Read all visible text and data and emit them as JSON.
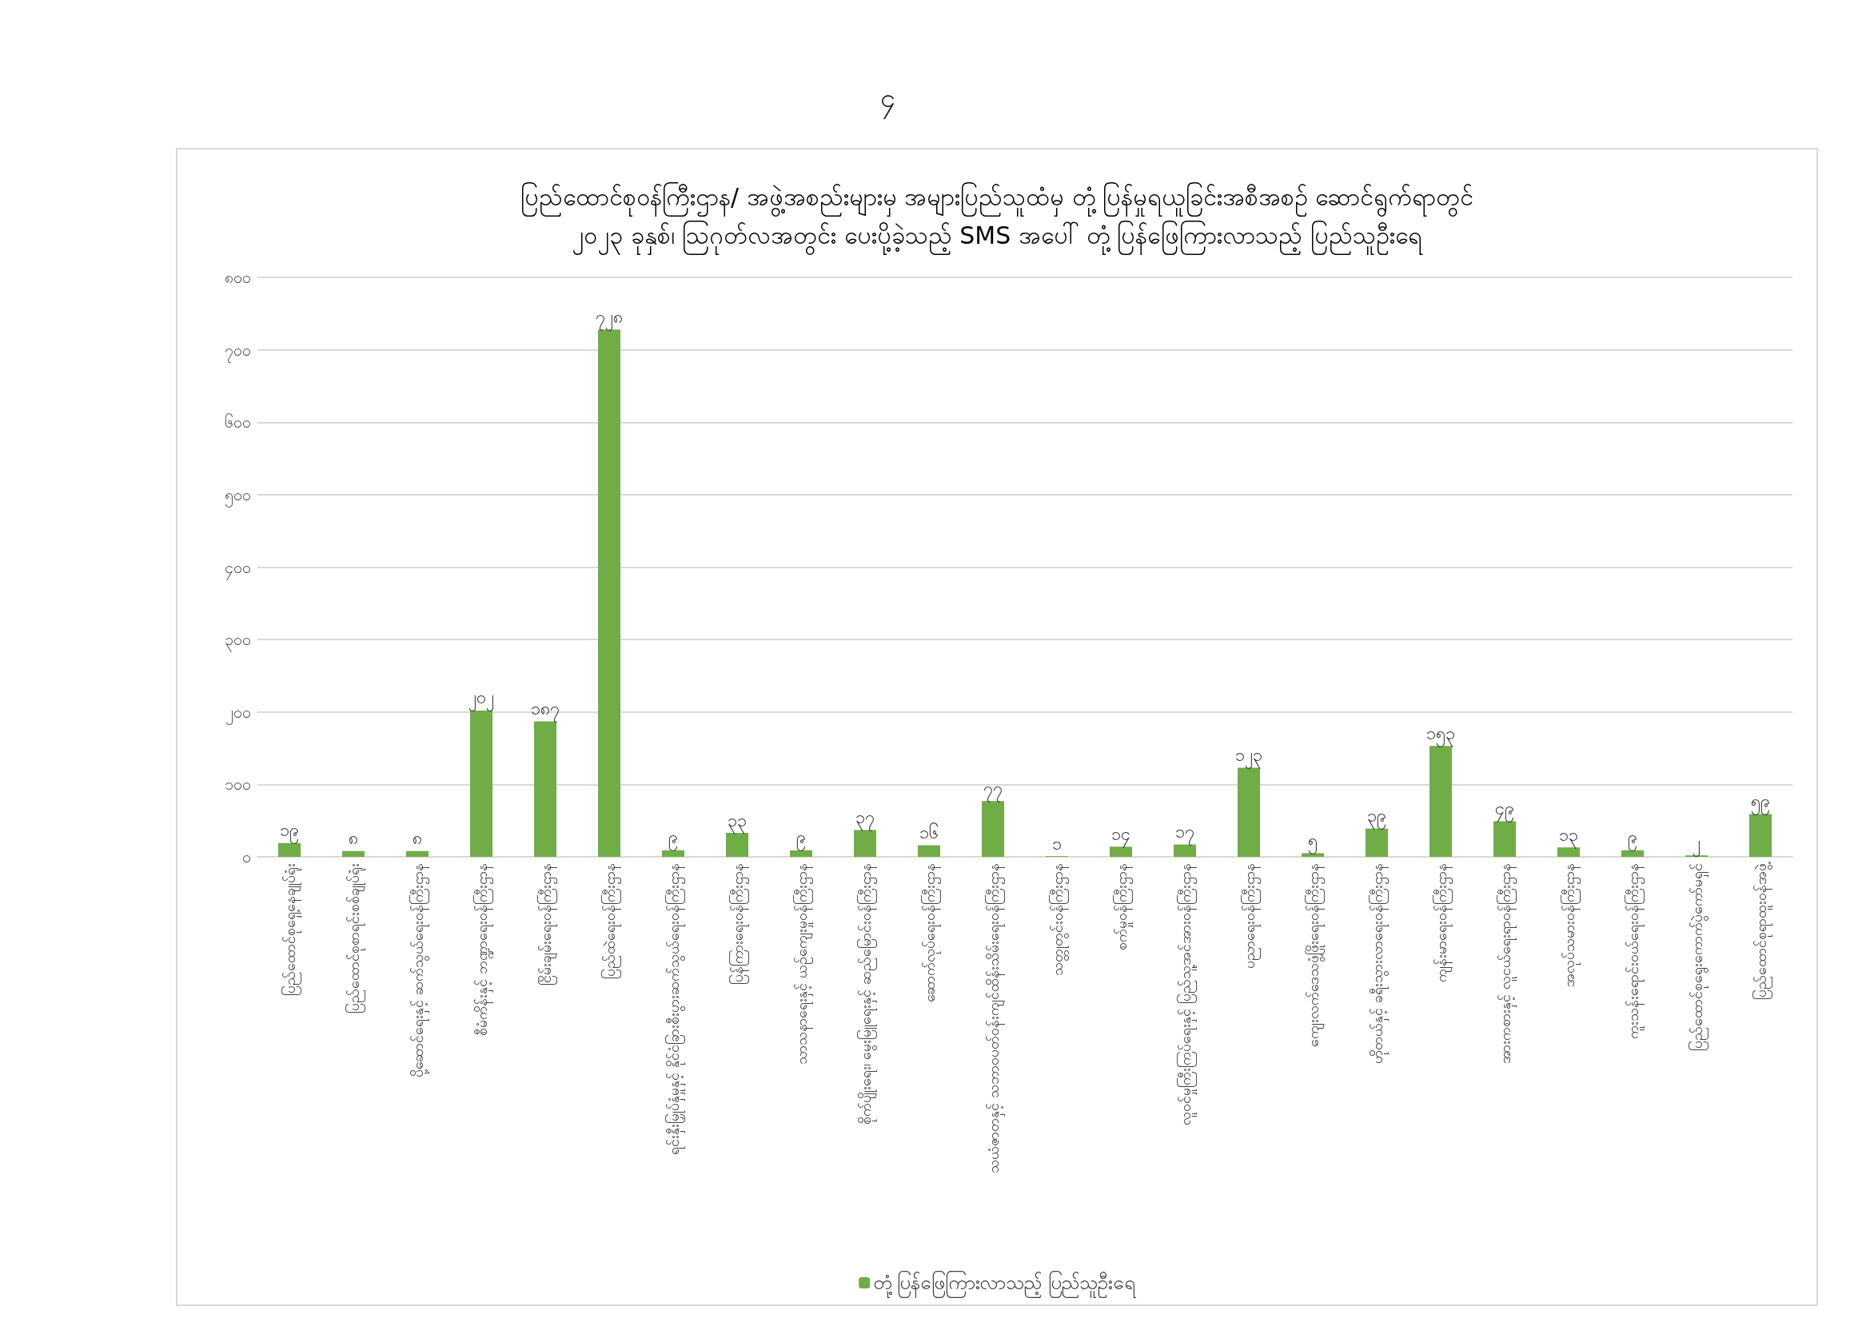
{
  "chart_data": {
    "type": "bar",
    "title": "ပြည်ထောင်စုဝန်ကြီးဌာန/ အဖွဲ့အစည်းများမှ အများပြည်သူထံမှ တုံ့ပြန်မှုရယူခြင်းအစီအစဉ် ဆောင်ရွက်ရာတွင်\n၂၀၂၃ ခုနှစ်၊ ဩဂုတ်လအတွင်း ပေးပို့ခဲ့သည့် SMS အပေါ် တုံ့ပြန်ဖြေကြားလာသည့် ပြည်သူဦးရေ",
    "annotations": [
      "၄"
    ],
    "categories": [
      "ပြည်ထောင်စုရှေ့နေချုပ်ရုံး",
      "ပြည်ထောင်စုစာရင်းစစ်ချုပ်ရုံး",
      "ပို့ဆောင်ရေးနှင့် ဆက်သွယ်ရေးဝန်ကြီးဌာန",
      "စီမံကိန်းနှင့် ဘဏ္ဍာရေးဝန်ကြီးဌာန",
      "ငြိမ်းချမ်းရေးဝန်ကြီးဌာန",
      "ပြည်ထဲရေးဝန်ကြီးဌာန",
      "ရင်းနှီးမြှုပ်နှံမှုနှင့် နိုင်ငံခြားစီးပွားဆက်သွယ်ရေးဝန်ကြီးဌာန",
      "ပြန်ကြားရေးဝန်ကြီးဌာန",
      "သာသနာရေးနှင့် ယဉ်ကျေးမှုဝန်ကြီးဌာန",
      "စိုက်ပျိုးရေး၊ မွေးမြူရေးနှင့် ဆည်မြောင်းဝန်ကြီးဌာန",
      "ဆောက်လုပ်ရေးဝန်ကြီးဌာန",
      "သယံဇာတနှင့် သဘာဝပတ်ဝန်းကျင်ထိန်းသိမ်းရေးဝန်ကြီးဌာန",
      "သတ္တုတွင်းဝန်ကြီးဌာန",
      "စက်မှုဝန်ကြီးဌာန",
      "လူဝင်မှုကြီးကြပ်ရေးနှင့် ပြည်သူ့အင်အားဝန်ကြီးဌာန",
      "ပညာရေးဝန်ကြီးဌာန",
      "ကျေးလက်ဒေသဖွံ့ဖြိုးရေးဝန်ကြီးဌာန",
      "ဟိုတယ်နှင့် ခရီးသွားလာရေးဝန်ကြီးဌာန",
      "ကျန်းမာရေးဝန်ကြီးဌာန",
      "အားကစားနှင့် လူငယ်ရေးရာဝန်ကြီးဌာန",
      "အလုပ်သမားဝန်ကြီးဌာန",
      "ကူးသန်းရောင်းဝယ်ရေးဝန်ကြီးဌာန",
      "ပြည်ထောင်စုရွေးကောက်ပွဲကော်မရှင်",
      "ပြည်ထောင်စုရာထူးဝန်အဖွဲ့"
    ],
    "series": [
      {
        "name": "တုံ့ပြန်ဖြေကြားလာသည့် ပြည်သူဦးရေ",
        "color": "#70ad47",
        "values": [
          19,
          8,
          8,
          202,
          187,
          728,
          9,
          33,
          9,
          37,
          16,
          77,
          1,
          14,
          17,
          123,
          5,
          39,
          153,
          49,
          13,
          9,
          2,
          59
        ],
        "value_labels": [
          "၁၉",
          "၈",
          "၈",
          "၂၀၂",
          "၁၈၇",
          "၇၂၈",
          "၉",
          "၃၃",
          "၉",
          "၃၇",
          "၁၆",
          "၇၇",
          "၁",
          "၁၄",
          "၁၇",
          "၁၂၃",
          "၅",
          "၃၉",
          "၁၅၃",
          "၄၉",
          "၁၃",
          "၉",
          "၂",
          "၅၉"
        ]
      }
    ],
    "ylim": [
      0,
      800
    ],
    "yticks": [
      {
        "value": 0,
        "label": "၀"
      },
      {
        "value": 100,
        "label": "၁၀၀"
      },
      {
        "value": 200,
        "label": "၂၀၀"
      },
      {
        "value": 300,
        "label": "၃၀၀"
      },
      {
        "value": 400,
        "label": "၄၀၀"
      },
      {
        "value": 500,
        "label": "၅၀၀"
      },
      {
        "value": 600,
        "label": "၆၀၀"
      },
      {
        "value": 700,
        "label": "၇၀၀"
      },
      {
        "value": 800,
        "label": "၈၀၀"
      }
    ],
    "grid": "y",
    "legend": "bottom"
  }
}
